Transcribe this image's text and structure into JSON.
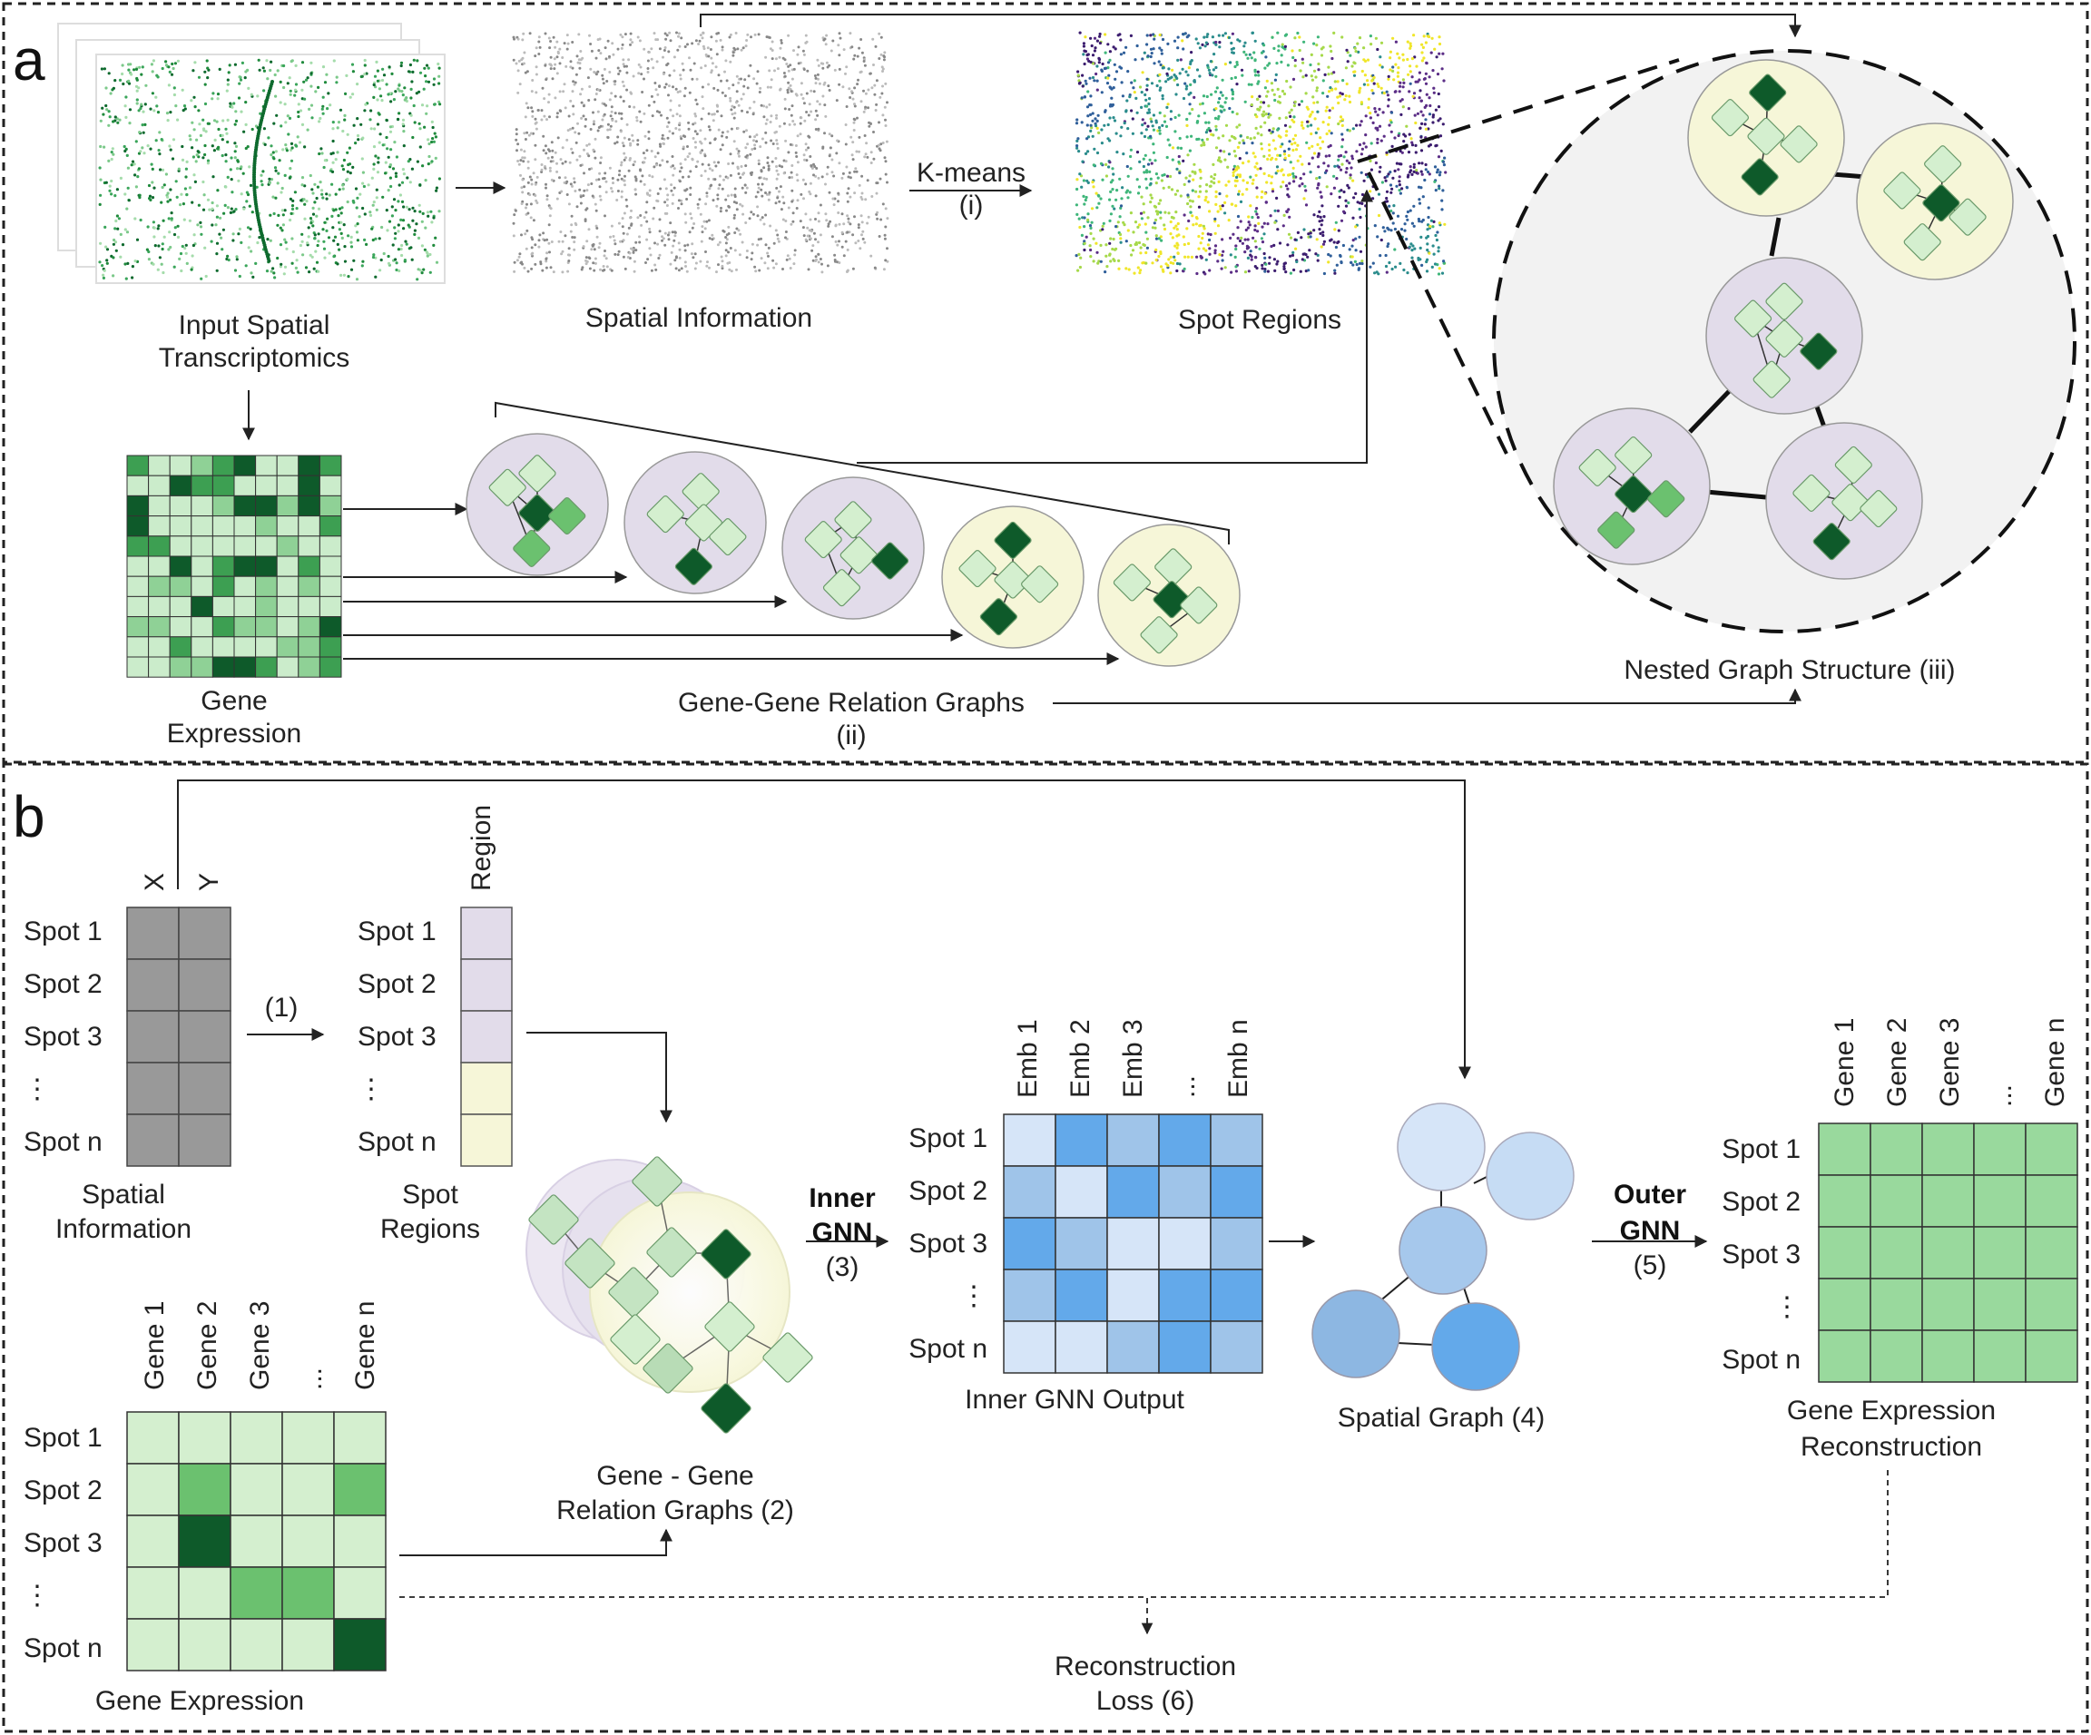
{
  "panel_a": {
    "letter": "a",
    "input_st_line1": "Input Spatial",
    "input_st_line2": "Transcriptomics",
    "spatial_info": "Spatial Information",
    "kmeans": "K-means",
    "kmeans_step": "(i)",
    "spot_regions": "Spot Regions",
    "gene_expr_line1": "Gene",
    "gene_expr_line2": "Expression",
    "gg_graphs": "Gene-Gene Relation Graphs",
    "gg_step": "(ii)",
    "nested": "Nested Graph Structure (iii)"
  },
  "panel_b": {
    "letter": "b",
    "col_x": "X",
    "col_y": "Y",
    "col_region": "Region",
    "spots": [
      "Spot 1",
      "Spot 2",
      "Spot 3",
      "⋮",
      "Spot n"
    ],
    "step1": "(1)",
    "spatial_info_line1": "Spatial",
    "spatial_info_line2": "Information",
    "spot_regions_line1": "Spot",
    "spot_regions_line2": "Regions",
    "gene_cols": [
      "Gene 1",
      "Gene 2",
      "Gene 3",
      "...",
      "Gene n"
    ],
    "gene_expression": "Gene Expression",
    "gg_line1": "Gene - Gene",
    "gg_line2": "Relation Graphs (2)",
    "inner_line1": "Inner",
    "inner_line2": "GNN",
    "inner_step": "(3)",
    "emb_cols": [
      "Emb 1",
      "Emb 2",
      "Emb 3",
      "...",
      "Emb n"
    ],
    "inner_output": "Inner GNN Output",
    "spatial_graph": "Spatial Graph (4)",
    "outer_line1": "Outer",
    "outer_line2": "GNN",
    "outer_step": "(5)",
    "recon_line1": "Gene Expression",
    "recon_line2": "Reconstruction",
    "loss_line1": "Reconstruction",
    "loss_line2": "Loss (6)"
  },
  "colors": {
    "green_light": "#d4efcf",
    "green_mid": "#6bc16f",
    "green_dark": "#0e5a2a",
    "purple_bg": "#e2dcea",
    "yellow_bg": "#f6f6d8",
    "blue_light": "#d6e5f8",
    "blue_mid": "#9fc4e9",
    "blue_strong": "#63a9ea",
    "gray_cell": "#999999",
    "recon_green": "#99d99d"
  }
}
